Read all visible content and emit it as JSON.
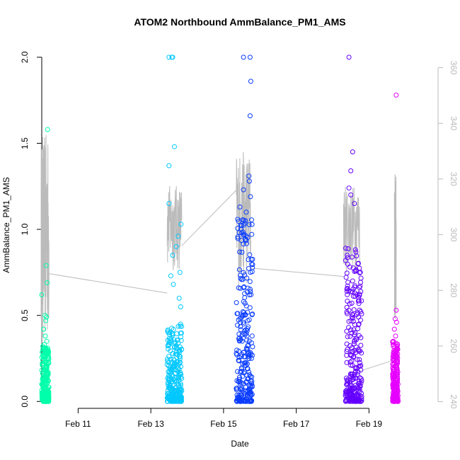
{
  "chart_data": {
    "type": "scatter",
    "title": "ATOM2 Northbound AmmBalance_PM1_AMS",
    "xlabel": "Date",
    "ylabel": "AmmBalance_PM1_AMS",
    "x_unit": "days in February",
    "xlim": [
      10.0,
      20.9
    ],
    "ylim": [
      -0.04,
      2.09
    ],
    "y_ticks": [
      "0.0",
      "0.5",
      "1.0",
      "1.5",
      "2.0"
    ],
    "x_ticks": [
      {
        "label": "Feb 11",
        "value": 11
      },
      {
        "label": "Feb 13",
        "value": 13
      },
      {
        "label": "Feb 15",
        "value": 15
      },
      {
        "label": "Feb 17",
        "value": 17
      },
      {
        "label": "Feb 19",
        "value": 19
      }
    ],
    "right_axis": {
      "ylim": [
        237.6,
        369.3
      ],
      "ticks": [
        "240",
        "260",
        "280",
        "300",
        "320",
        "340",
        "360"
      ],
      "color": "#bbbbbb"
    },
    "grid": false,
    "series": [
      {
        "color": "#00ffaa",
        "x_range": [
          10.0,
          10.2
        ],
        "points": [
          [
            10.16,
            1.58
          ],
          [
            10.12,
            0.79
          ],
          [
            10.15,
            0.69
          ],
          [
            10.0,
            0.62
          ],
          [
            10.09,
            0.5
          ],
          [
            10.13,
            0.49
          ],
          [
            10.11,
            0.47
          ],
          [
            10.05,
            0.42
          ],
          [
            10.1,
            0.38
          ],
          [
            10.14,
            0.35
          ],
          [
            10.07,
            0.33
          ],
          [
            10.03,
            0.32
          ]
        ],
        "band_max": 0.32
      },
      {
        "color": "#00c8ff",
        "x_range": [
          13.45,
          13.85
        ],
        "points": [
          [
            13.5,
            2.0
          ],
          [
            13.58,
            2.0
          ],
          [
            13.6,
            2.0
          ],
          [
            13.65,
            1.48
          ],
          [
            13.5,
            1.37
          ],
          [
            13.5,
            1.15
          ],
          [
            13.83,
            1.03
          ],
          [
            13.75,
            0.96
          ],
          [
            13.7,
            0.9
          ],
          [
            13.6,
            0.85
          ],
          [
            13.55,
            0.73
          ],
          [
            13.62,
            0.68
          ],
          [
            13.8,
            0.75
          ],
          [
            13.78,
            0.6
          ],
          [
            13.82,
            0.55
          ]
        ],
        "band_max": 0.45
      },
      {
        "color": "#0a3cff",
        "x_range": [
          15.35,
          15.8
        ],
        "points": [
          [
            15.55,
            2.0
          ],
          [
            15.73,
            2.0
          ],
          [
            15.75,
            1.86
          ],
          [
            15.73,
            1.66
          ],
          [
            15.7,
            1.31
          ],
          [
            15.55,
            1.23
          ],
          [
            15.45,
            1.13
          ],
          [
            15.74,
            1.19
          ],
          [
            15.71,
            1.28
          ],
          [
            15.6,
            1.05
          ],
          [
            15.5,
            0.98
          ]
        ],
        "band_max": 1.1
      },
      {
        "color": "#6400ff",
        "x_range": [
          18.35,
          18.8
        ],
        "points": [
          [
            18.45,
            2.0
          ],
          [
            18.55,
            1.45
          ],
          [
            18.5,
            1.34
          ],
          [
            18.45,
            1.24
          ],
          [
            18.5,
            1.2
          ],
          [
            18.6,
            1.15
          ],
          [
            18.4,
            0.85
          ],
          [
            18.7,
            0.8
          ],
          [
            18.55,
            0.7
          ]
        ],
        "band_max": 0.9
      },
      {
        "color": "#e600ff",
        "x_range": [
          19.65,
          19.8
        ],
        "points": [
          [
            19.75,
            1.78
          ],
          [
            19.75,
            0.53
          ],
          [
            19.72,
            0.48
          ],
          [
            19.76,
            0.46
          ],
          [
            19.7,
            0.42
          ],
          [
            19.73,
            0.38
          ]
        ],
        "band_max": 0.35
      }
    ],
    "right_axis_line": {
      "color": "#bbbbbb",
      "bursts": [
        {
          "x_range": [
            9.98,
            10.2
          ],
          "values_range": [
            258,
            336
          ]
        },
        {
          "x_range": [
            13.45,
            13.85
          ],
          "values_range": [
            286,
            318
          ]
        },
        {
          "x_range": [
            15.35,
            15.75
          ],
          "values_range": [
            280,
            330
          ]
        },
        {
          "x_range": [
            18.3,
            18.75
          ],
          "values_range": [
            286,
            318
          ]
        },
        {
          "x_range": [
            19.7,
            19.75
          ],
          "values_range": [
            266,
            322
          ]
        }
      ],
      "connectors": [
        [
          [
            10.2,
            286
          ],
          [
            13.45,
            279
          ]
        ],
        [
          [
            13.85,
            296
          ],
          [
            15.35,
            316
          ]
        ],
        [
          [
            15.75,
            288
          ],
          [
            18.3,
            285
          ]
        ],
        [
          [
            18.75,
            251
          ],
          [
            19.7,
            255
          ]
        ]
      ]
    }
  }
}
